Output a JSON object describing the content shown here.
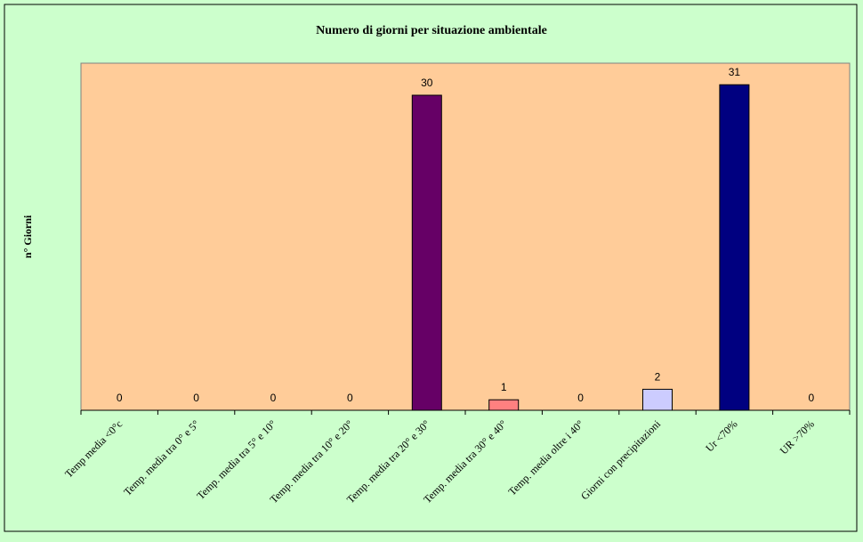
{
  "chart_data": {
    "type": "bar",
    "title": "Numero di giorni per situazione ambientale",
    "xlabel": "",
    "ylabel": "n° Giorni",
    "ylim": [
      0,
      32
    ],
    "grid": false,
    "legend": "none",
    "categories": [
      "Temp media <0°c",
      "Temp. media tra 0° e 5°",
      "Temp. media tra 5° e 10°",
      "Temp. media tra 10° e 20°",
      "Temp. media tra 20° e 30°",
      "Temp. media tra 30° e 40°",
      "Temp. media oltre i 40°",
      "Giorni con precipitazioni",
      "Ur <70%",
      "UR >70%"
    ],
    "values": [
      0,
      0,
      0,
      0,
      30,
      1,
      0,
      2,
      31,
      0
    ],
    "bar_colors": [
      "#ff00ff",
      "#ffff00",
      "#00ffff",
      "#800000",
      "#660066",
      "#ff8080",
      "#0066cc",
      "#ccccff",
      "#000080",
      "#ff00ff"
    ],
    "plot_background": "#ffcc99",
    "page_background": "#ccffcc"
  }
}
